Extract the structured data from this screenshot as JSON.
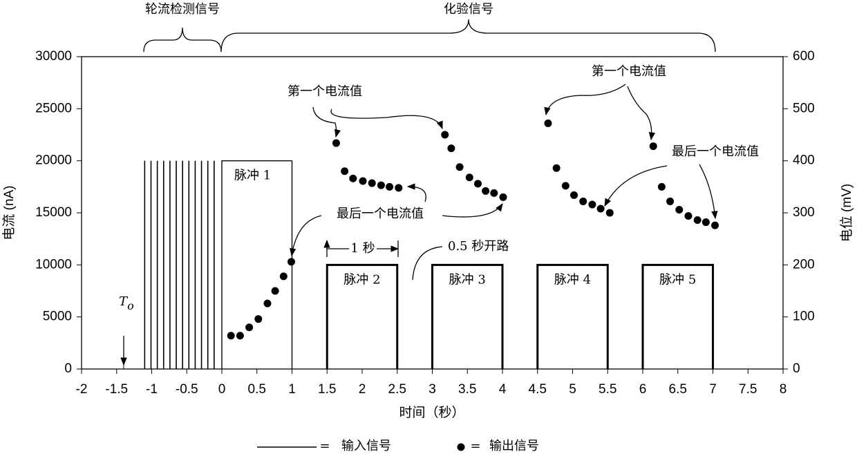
{
  "chart_data": {
    "type": "scatter",
    "xlabel": "时间（秒）",
    "ylabel": "电流 (nA)",
    "y2label": "电位 (mV)",
    "xlim": [
      -2,
      8
    ],
    "xticks": [
      -2,
      -1.5,
      -1,
      -0.5,
      0,
      0.5,
      1,
      1.5,
      2,
      2.5,
      3,
      3.5,
      4,
      4.5,
      5,
      5.5,
      6,
      6.5,
      7,
      7.5,
      8
    ],
    "ylim": [
      0,
      30000
    ],
    "yticks": [
      0,
      5000,
      10000,
      15000,
      20000,
      25000,
      30000
    ],
    "y2lim": [
      0,
      600
    ],
    "y2ticks": [
      0,
      100,
      200,
      300,
      400,
      500,
      600
    ],
    "legend_separator": "=",
    "series": [
      {
        "name": "输入信号",
        "axis": "y2",
        "color": "#000000",
        "spikes": {
          "x": [
            -1.1,
            -1.01,
            -0.92,
            -0.83,
            -0.74,
            -0.65,
            -0.56,
            -0.47,
            -0.38,
            -0.29,
            -0.2,
            -0.11
          ],
          "values": [
            400,
            400,
            400,
            400,
            400,
            400,
            400,
            400,
            400,
            400,
            400,
            400
          ]
        },
        "pulses": [
          {
            "start": 0,
            "end": 1,
            "value": 400,
            "label": "脉冲 1"
          },
          {
            "start": 1.5,
            "end": 2.5,
            "value": 200,
            "label": "脉冲 2"
          },
          {
            "start": 3,
            "end": 4,
            "value": 200,
            "label": "脉冲 3"
          },
          {
            "start": 4.5,
            "end": 5.5,
            "value": 200,
            "label": "脉冲 4"
          },
          {
            "start": 6,
            "end": 7,
            "value": 200,
            "label": "脉冲 5"
          }
        ]
      },
      {
        "name": "输出信号",
        "color": "#000000",
        "x": [
          0.13,
          0.26,
          0.39,
          0.52,
          0.65,
          0.76,
          0.88,
          0.99,
          1.63,
          1.75,
          1.87,
          2.01,
          2.14,
          2.27,
          2.39,
          2.52,
          3.18,
          3.27,
          3.39,
          3.53,
          3.65,
          3.76,
          3.88,
          4.01,
          4.65,
          4.77,
          4.9,
          5.02,
          5.15,
          5.28,
          5.4,
          5.53,
          6.15,
          6.27,
          6.39,
          6.52,
          6.65,
          6.78,
          6.9,
          7.03
        ],
        "values": [
          3200,
          3200,
          4000,
          4800,
          6300,
          7500,
          8900,
          10300,
          21700,
          19000,
          18300,
          18050,
          17850,
          17650,
          17500,
          17400,
          22500,
          21200,
          19400,
          18400,
          17800,
          17100,
          16900,
          16500,
          23600,
          19300,
          17600,
          16700,
          16100,
          15800,
          15400,
          15000,
          21400,
          17500,
          16100,
          15300,
          14700,
          14300,
          14100,
          13800
        ]
      }
    ],
    "annotations": [
      "轮流检测信号",
      "化验信号",
      "1 秒",
      "0.5 秒开路",
      "第一个电流值",
      "最后一个电流值",
      "第一个电流值",
      "最后一个电流值"
    ],
    "t0": {
      "label": "T",
      "subscript": "o",
      "x": -1.4
    }
  }
}
